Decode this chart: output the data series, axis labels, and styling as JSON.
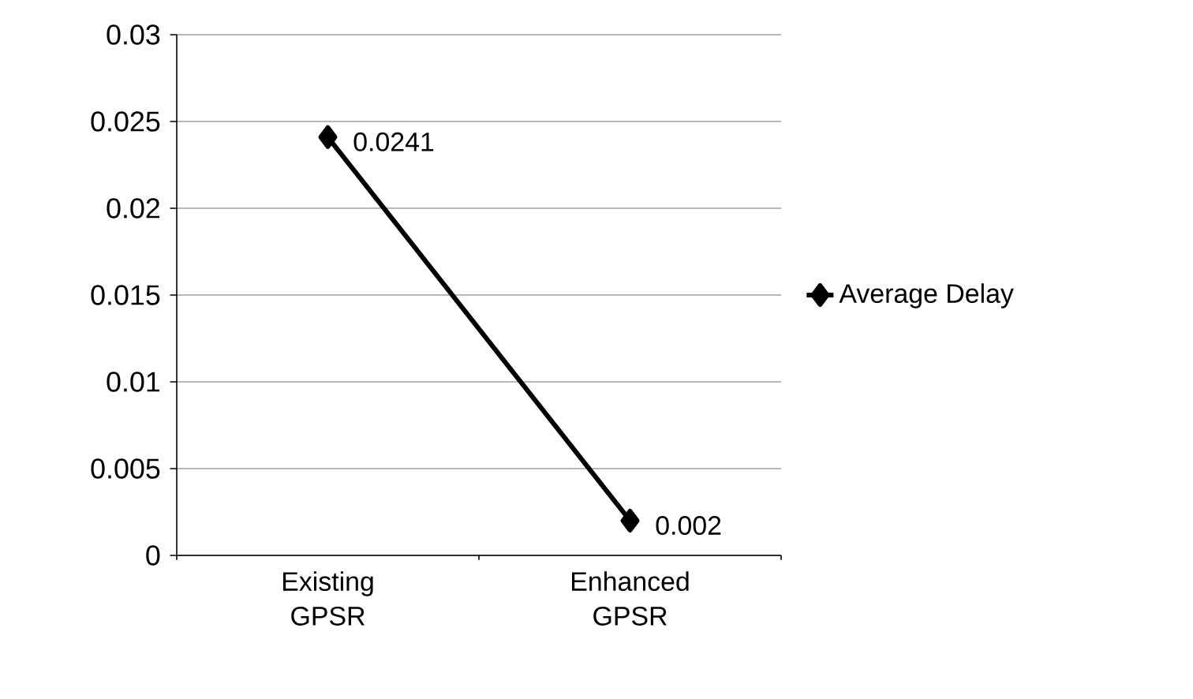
{
  "chart_data": {
    "type": "line",
    "categories": [
      "Existing GPSR",
      "Enhanced GPSR"
    ],
    "series": [
      {
        "name": "Average Delay",
        "color": "#000000",
        "values": [
          0.0241,
          0.002
        ]
      }
    ],
    "ylim": [
      0,
      0.03
    ],
    "yticks": [
      0,
      0.005,
      0.01,
      0.015,
      0.02,
      0.025,
      0.03
    ],
    "grid": "y",
    "legend": "right",
    "marker": "diamond",
    "line_style": "solid",
    "data_labels": true
  }
}
